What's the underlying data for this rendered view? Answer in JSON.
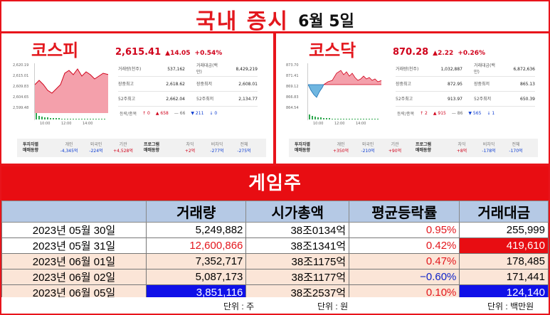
{
  "header": {
    "title": "국내 증시",
    "date": "6월 5일"
  },
  "kospi": {
    "name": "코스피",
    "index": "2,615.41",
    "change": "▲14.05",
    "pct": "+0.54%",
    "yticks": [
      "2,620.19",
      "2,615.01",
      "2,609.83",
      "2,604.65",
      "2,599.48"
    ],
    "xticks": [
      "10:00",
      "12:00",
      "14:00"
    ],
    "stats": [
      [
        "거래량(천주)",
        "537,162",
        "거래대금(백만)",
        "8,429,219"
      ],
      [
        "장중최고",
        "2,618.62",
        "장중최저",
        "2,608.01"
      ],
      [
        "52주최고",
        "2,662.04",
        "52주최저",
        "2,134.77"
      ]
    ],
    "breadth_label": "등락/종목",
    "breadth": [
      "↑ 0",
      "▲ 658",
      "— 66",
      "▼ 211",
      "↓ 0"
    ],
    "flow": {
      "label1": "투자자별",
      "label2": "매매동향",
      "cells": [
        [
          "개인",
          "-4,345억"
        ],
        [
          "외국인",
          "-224억"
        ],
        [
          "기관",
          "+4,528억"
        ]
      ],
      "plabel1": "프로그램",
      "plabel2": "매매동향",
      "pcells": [
        [
          "차익",
          "+2억"
        ],
        [
          "비차익",
          "-277억"
        ],
        [
          "전체",
          "-275억"
        ]
      ]
    }
  },
  "kosdaq": {
    "name": "코스닥",
    "index": "870.28",
    "change": "▲2.22",
    "pct": "+0.26%",
    "yticks": [
      "873.70",
      "871.41",
      "869.12",
      "866.83",
      "864.54"
    ],
    "xticks": [
      "10:00",
      "12:00",
      "14:00"
    ],
    "stats": [
      [
        "거래량(천주)",
        "1,032,887",
        "거래대금(백만)",
        "6,872,636"
      ],
      [
        "장중최고",
        "872.95",
        "장중최저",
        "865.13"
      ],
      [
        "52주최고",
        "913.97",
        "52주최저",
        "650.39"
      ]
    ],
    "breadth_label": "등락/종목",
    "breadth": [
      "↑ 2",
      "▲ 915",
      "— 86",
      "▼ 565",
      "↓ 1"
    ],
    "flow": {
      "label1": "투자자별",
      "label2": "매매동향",
      "cells": [
        [
          "개인",
          "+350억"
        ],
        [
          "외국인",
          "-210억"
        ],
        [
          "기관",
          "+90억"
        ]
      ],
      "plabel1": "프로그램",
      "plabel2": "매매동향",
      "pcells": [
        [
          "차익",
          "+8억"
        ],
        [
          "비차익",
          "-178억"
        ],
        [
          "전체",
          "-170억"
        ]
      ]
    }
  },
  "section": {
    "title": "게임주"
  },
  "table": {
    "headers": [
      "",
      "거래량",
      "시가총액",
      "평균등락률",
      "거래대금"
    ],
    "rows": [
      [
        "2023년 05월 30일",
        "5,249,882",
        "38조0134억",
        "0.95%",
        "255,999"
      ],
      [
        "2023년 05월 31일",
        "12,600,866",
        "38조1341억",
        "0.42%",
        "419,610"
      ],
      [
        "2023년 06월 01일",
        "7,352,717",
        "38조1175억",
        "0.47%",
        "178,485"
      ],
      [
        "2023년 06월 02일",
        "5,087,173",
        "38조1177억",
        "−0.60%",
        "171,441"
      ],
      [
        "2023년 06월 05일",
        "3,851,116",
        "38조2537억",
        "0.10%",
        "124,140"
      ]
    ]
  },
  "units": {
    "u1": "단위 : 주",
    "u2": "단위 : 원",
    "u3": "단위 : 백만원"
  }
}
